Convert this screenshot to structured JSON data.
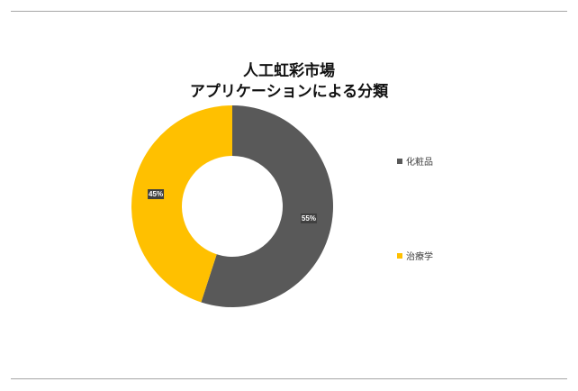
{
  "chart_data": {
    "type": "pie",
    "donut": true,
    "title_line1": "人工虹彩市場",
    "title_line2": "アプリケーションによる分類",
    "slices": [
      {
        "name": "化粧品",
        "value": 55,
        "label": "55%",
        "color": "#595959"
      },
      {
        "name": "治療学",
        "value": 45,
        "label": "45%",
        "color": "#ffc000"
      }
    ],
    "legend_position": "right"
  }
}
